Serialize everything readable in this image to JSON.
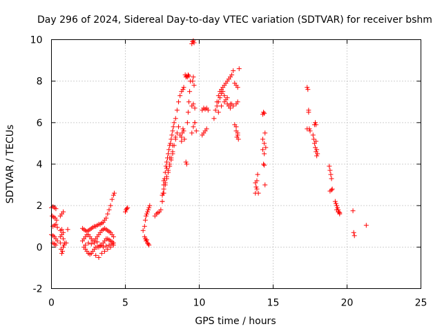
{
  "chart_data": {
    "type": "scatter",
    "title": "Day 296 of 2024, Sidereal Day-to-day VTEC variation (SDTVAR) for receiver bshm",
    "xlabel": "GPS time / hours",
    "ylabel": "SDTVAR / TECUs",
    "xlim": [
      0,
      25
    ],
    "ylim": [
      -2,
      10
    ],
    "xticks": [
      0,
      5,
      10,
      15,
      20,
      25
    ],
    "yticks": [
      -2,
      0,
      2,
      4,
      6,
      8,
      10
    ],
    "xtick_labels": [
      "0",
      "5",
      "10",
      "15",
      "20",
      "25"
    ],
    "ytick_labels": [
      "-2",
      "0",
      "2",
      "4",
      "6",
      "8",
      "10"
    ],
    "grid": true,
    "marker": "plus",
    "color": "#ff0000",
    "series": [
      {
        "name": "SDTVAR",
        "x": [
          0.0,
          0.1,
          0.2,
          0.3,
          0.05,
          0.15,
          0.25,
          0.35,
          0.1,
          0.2,
          0.3,
          0.4,
          0.0,
          0.1,
          0.2,
          0.3,
          0.4,
          0.1,
          0.2,
          0.3,
          0.6,
          0.7,
          0.8,
          0.6,
          0.7,
          0.8,
          0.6,
          0.65,
          0.7,
          0.75,
          0.8,
          0.85,
          0.9,
          0.6,
          0.7,
          0.8,
          1.0,
          1.1,
          2.1,
          2.2,
          2.3,
          2.4,
          2.5,
          2.6,
          2.7,
          2.8,
          2.9,
          3.0,
          3.1,
          3.2,
          3.3,
          3.4,
          3.5,
          3.6,
          3.7,
          3.8,
          3.9,
          4.0,
          4.1,
          4.2,
          4.25,
          2.1,
          2.2,
          2.3,
          2.4,
          2.5,
          2.6,
          2.7,
          2.8,
          2.9,
          3.0,
          3.1,
          3.2,
          3.3,
          3.4,
          3.5,
          3.6,
          3.7,
          3.8,
          3.9,
          4.0,
          4.1,
          4.2,
          2.2,
          2.3,
          2.4,
          2.5,
          2.6,
          2.7,
          2.8,
          2.9,
          3.0,
          3.1,
          3.2,
          3.3,
          3.4,
          3.5,
          3.6,
          3.7,
          3.8,
          3.9,
          4.0,
          4.1,
          4.2,
          2.3,
          2.5,
          2.7,
          2.9,
          3.1,
          3.3,
          3.5,
          3.7,
          3.9,
          4.1,
          3.0,
          3.2,
          3.4,
          3.6,
          3.8,
          4.0,
          4.2,
          5.0,
          5.05,
          5.1,
          5.15,
          6.2,
          6.3,
          6.35,
          6.4,
          6.45,
          6.5,
          6.55,
          6.6,
          6.65,
          6.3,
          6.4,
          6.5,
          6.6,
          6.35,
          6.45,
          6.55,
          7.0,
          7.1,
          7.2,
          7.3,
          7.4,
          7.5,
          7.55,
          7.6,
          7.65,
          7.7,
          7.75,
          7.8,
          7.85,
          7.9,
          7.95,
          8.0,
          8.05,
          8.1,
          8.15,
          8.2,
          8.25,
          8.3,
          7.5,
          7.6,
          7.7,
          7.8,
          7.9,
          8.0,
          8.1,
          8.2,
          8.3,
          7.5,
          7.6,
          7.7,
          7.8,
          7.9,
          8.0,
          8.1,
          8.2,
          7.6,
          7.8,
          8.0,
          8.2,
          8.4,
          8.4,
          8.5,
          8.6,
          8.7,
          8.8,
          8.9,
          8.95,
          8.4,
          8.5,
          8.6,
          8.7,
          8.8,
          8.8,
          8.85,
          8.9,
          8.95,
          9.0,
          9.05,
          9.1,
          9.15,
          9.2,
          9.25,
          9.3,
          9.2,
          9.25,
          9.3,
          9.35,
          9.4,
          9.1,
          9.15,
          9.5,
          9.55,
          9.6,
          9.65,
          9.5,
          9.6,
          9.7,
          9.8,
          9.5,
          9.6,
          9.7,
          9.55,
          9.6,
          9.65,
          9.7,
          10.2,
          10.3,
          10.4,
          10.5,
          10.2,
          10.3,
          10.4,
          10.5,
          10.6,
          11.0,
          11.1,
          11.2,
          11.3,
          11.4,
          11.5,
          11.6,
          11.7,
          11.8,
          11.9,
          12.0,
          12.1,
          12.2,
          12.3,
          11.2,
          11.3,
          11.4,
          11.5,
          11.6,
          11.7,
          11.8,
          11.9,
          12.0,
          12.1,
          12.2,
          11.3,
          11.5,
          11.7,
          11.9,
          12.1,
          12.3,
          12.5,
          12.6,
          12.4,
          12.5,
          12.6,
          12.4,
          12.5,
          12.6,
          12.7,
          12.5,
          12.6,
          12.55,
          12.65,
          13.8,
          13.85,
          13.9,
          13.95,
          13.8,
          13.9,
          14.0,
          14.3,
          14.35,
          14.4,
          14.45,
          14.3,
          14.4,
          14.5,
          14.35,
          14.4,
          14.45,
          14.3,
          14.4,
          17.3,
          17.35,
          17.4,
          17.3,
          17.4,
          17.45,
          17.5,
          17.7,
          17.75,
          17.8,
          17.85,
          17.9,
          17.95,
          17.8,
          17.85,
          17.9,
          18.0,
          17.9,
          17.95,
          18.8,
          18.85,
          18.9,
          18.95,
          19.0,
          18.85,
          18.95,
          19.2,
          19.25,
          19.3,
          19.35,
          19.4,
          19.45,
          19.5,
          19.3,
          19.4,
          19.5,
          20.4,
          20.45,
          20.5,
          21.3
        ],
        "y": [
          1.9,
          1.95,
          1.9,
          1.85,
          1.5,
          1.45,
          1.4,
          1.3,
          1.0,
          1.05,
          1.1,
          0.95,
          0.6,
          0.55,
          0.5,
          0.4,
          0.3,
          0.2,
          0.15,
          0.1,
          1.5,
          1.6,
          1.7,
          0.8,
          0.85,
          0.7,
          0.2,
          -0.1,
          -0.3,
          -0.2,
          0.0,
          0.1,
          0.2,
          0.5,
          0.6,
          0.4,
          0.2,
          0.85,
          0.9,
          0.85,
          0.8,
          0.75,
          0.8,
          0.85,
          0.9,
          0.95,
          1.0,
          1.0,
          1.05,
          1.1,
          1.1,
          1.15,
          1.2,
          1.3,
          1.4,
          1.6,
          1.8,
          2.0,
          2.3,
          2.5,
          2.6,
          0.3,
          0.4,
          0.5,
          0.6,
          0.6,
          0.5,
          0.4,
          0.3,
          0.3,
          0.4,
          0.5,
          0.6,
          0.7,
          0.8,
          0.85,
          0.9,
          0.85,
          0.8,
          0.75,
          0.7,
          0.6,
          0.5,
          0.0,
          -0.1,
          -0.2,
          -0.3,
          -0.35,
          -0.3,
          -0.2,
          -0.1,
          0.0,
          0.0,
          0.0,
          0.05,
          0.1,
          0.2,
          0.3,
          0.4,
          0.4,
          0.35,
          0.3,
          0.25,
          0.2,
          0.1,
          0.2,
          0.15,
          0.2,
          0.25,
          0.1,
          0.0,
          0.05,
          0.1,
          0.15,
          -0.4,
          -0.5,
          -0.3,
          -0.2,
          -0.1,
          0.0,
          0.1,
          1.7,
          1.8,
          1.85,
          1.9,
          0.8,
          1.0,
          1.3,
          1.5,
          1.6,
          1.7,
          1.8,
          1.9,
          2.0,
          0.5,
          0.3,
          0.2,
          0.1,
          0.4,
          0.35,
          0.15,
          1.5,
          1.6,
          1.65,
          1.7,
          1.8,
          2.2,
          2.6,
          3.0,
          3.3,
          3.6,
          3.9,
          4.1,
          4.3,
          4.5,
          4.7,
          4.9,
          5.0,
          5.2,
          5.4,
          5.6,
          5.8,
          6.0,
          2.5,
          2.8,
          3.1,
          3.4,
          3.7,
          4.0,
          4.3,
          4.6,
          4.9,
          2.2,
          2.6,
          3.0,
          3.3,
          3.6,
          3.9,
          4.2,
          4.5,
          3.2,
          3.8,
          4.3,
          4.9,
          5.3,
          6.2,
          6.6,
          7.0,
          7.3,
          7.5,
          7.6,
          7.7,
          5.2,
          5.5,
          5.8,
          5.4,
          5.1,
          5.3,
          5.5,
          5.7,
          5.6,
          5.2,
          8.3,
          8.2,
          8.25,
          8.2,
          8.3,
          8.25,
          6.0,
          6.5,
          7.0,
          7.5,
          8.0,
          4.1,
          4.0,
          9.8,
          9.9,
          9.95,
          9.85,
          5.5,
          5.8,
          6.0,
          5.6,
          6.8,
          6.9,
          6.7,
          8.0,
          8.2,
          7.8,
          6.0,
          5.4,
          5.5,
          5.6,
          5.7,
          6.6,
          6.7,
          6.65,
          6.7,
          6.6,
          6.2,
          6.6,
          7.0,
          7.3,
          7.5,
          7.6,
          7.7,
          7.8,
          7.9,
          8.0,
          8.1,
          8.2,
          8.3,
          8.5,
          6.8,
          7.0,
          7.2,
          7.4,
          7.5,
          7.3,
          7.1,
          6.9,
          6.8,
          6.7,
          6.9,
          6.5,
          6.8,
          7.0,
          7.2,
          6.9,
          6.8,
          6.9,
          7.0,
          5.9,
          5.6,
          5.4,
          7.9,
          7.8,
          7.7,
          8.6,
          5.8,
          5.5,
          5.3,
          5.2,
          2.6,
          2.9,
          3.2,
          3.5,
          3.1,
          2.8,
          2.6,
          6.4,
          6.5,
          6.45,
          5.5,
          5.2,
          5.0,
          4.8,
          4.0,
          3.95,
          3.0,
          4.7,
          4.5,
          7.7,
          7.6,
          6.6,
          5.7,
          6.5,
          5.7,
          5.6,
          5.4,
          5.2,
          5.0,
          4.8,
          4.6,
          4.4,
          5.9,
          6.0,
          5.9,
          4.5,
          5.1,
          4.7,
          3.9,
          3.7,
          3.5,
          3.3,
          2.8,
          2.7,
          2.75,
          2.2,
          2.1,
          2.0,
          1.9,
          1.8,
          1.7,
          1.6,
          1.8,
          1.7,
          1.65,
          1.75,
          0.7,
          0.55,
          1.05
        ]
      }
    ]
  }
}
